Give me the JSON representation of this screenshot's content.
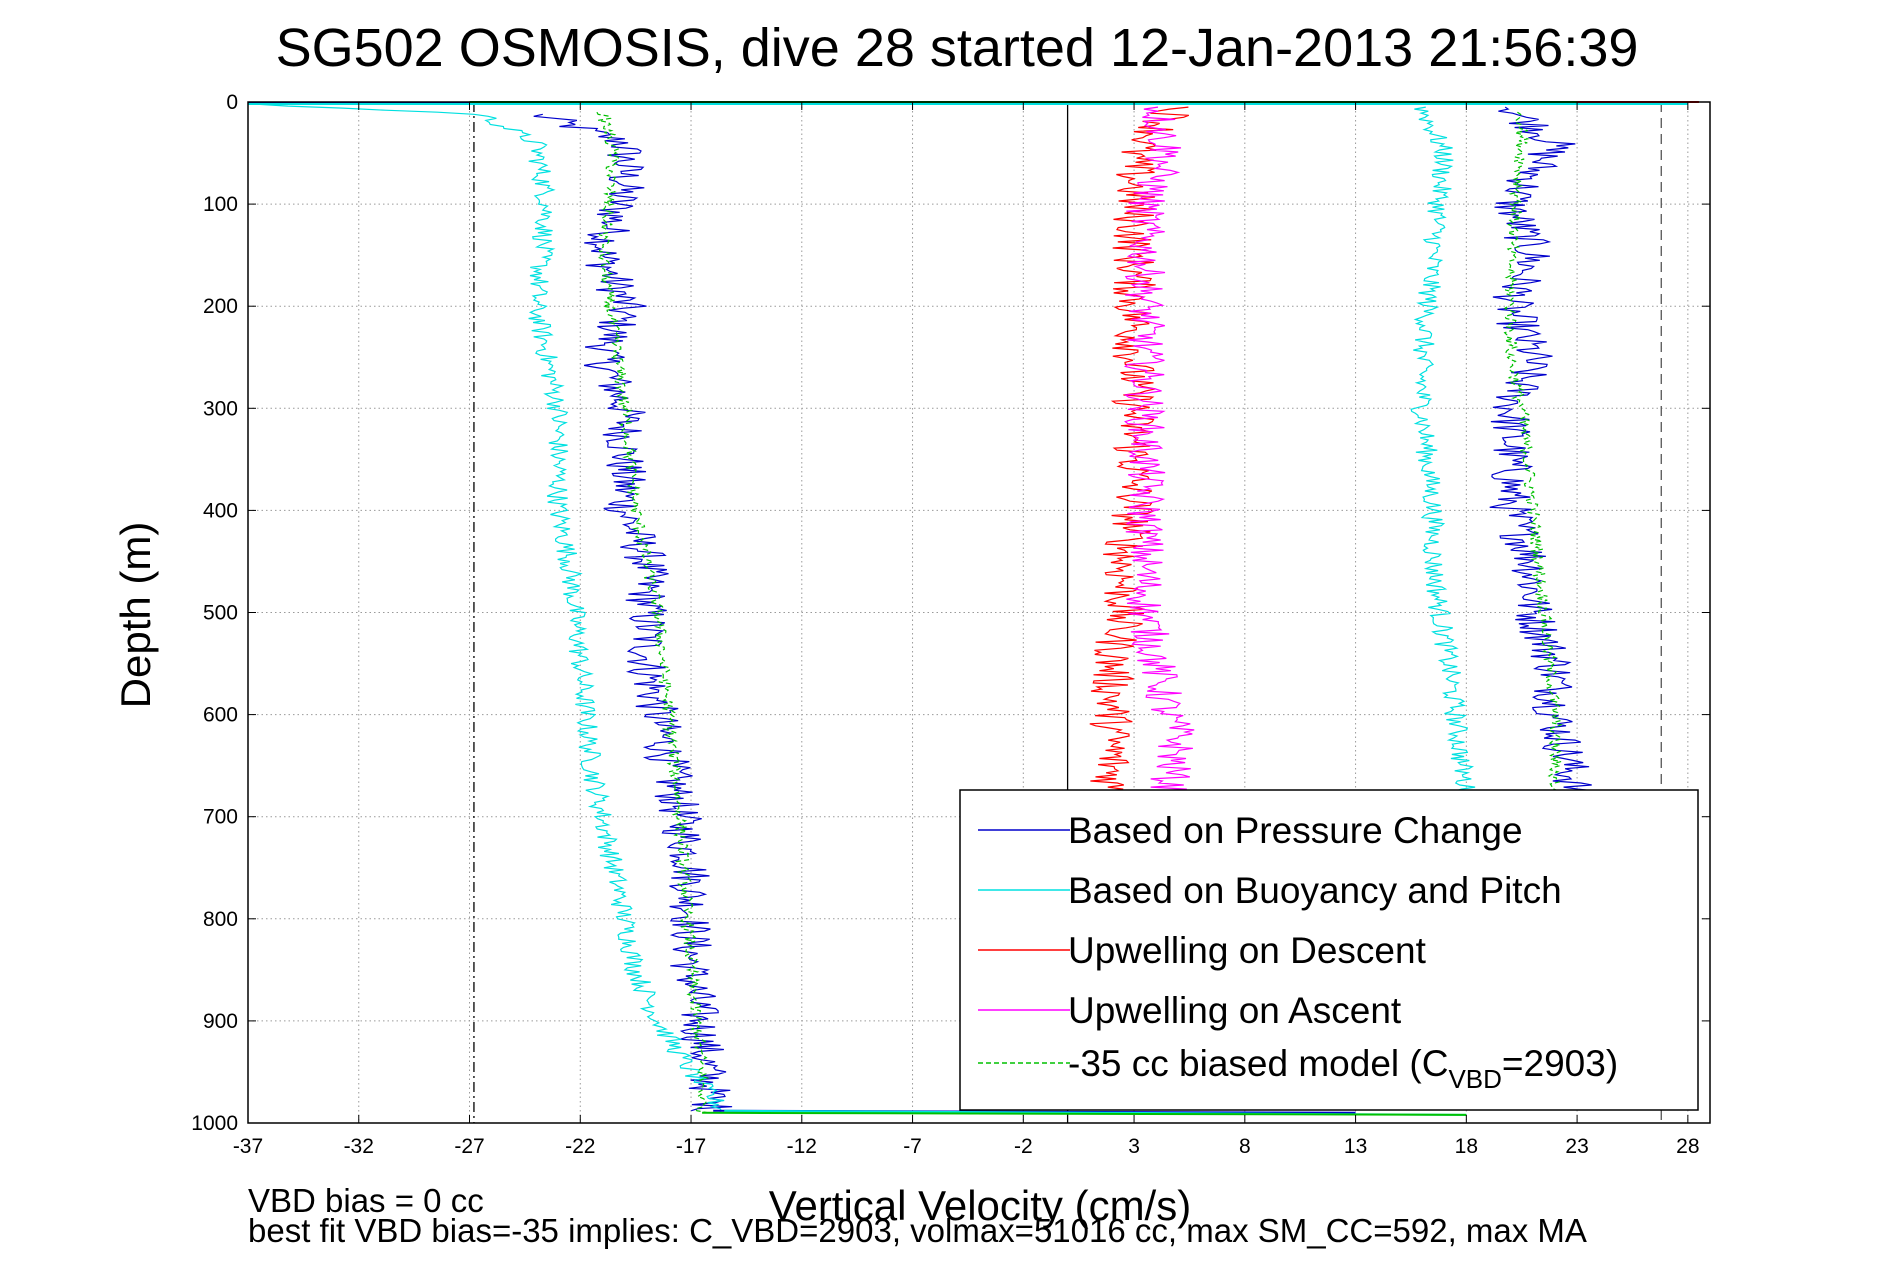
{
  "chart_data": {
    "type": "line",
    "title": "SG502 OSMOSIS, dive 28 started 12-Jan-2013 21:56:39",
    "xlabel": "Vertical Velocity (cm/s)",
    "ylabel": "Depth (m)",
    "xlim": [
      -37,
      29
    ],
    "ylim": [
      1000,
      0
    ],
    "y_reversed": true,
    "x_ticks": [
      -37,
      -32,
      -27,
      -22,
      -17,
      -12,
      -7,
      -2,
      3,
      8,
      13,
      18,
      23,
      28
    ],
    "y_ticks": [
      0,
      100,
      200,
      300,
      400,
      500,
      600,
      700,
      800,
      900,
      1000
    ],
    "grid": true,
    "legend_position": "bottom-right",
    "reference_lines": [
      {
        "x": -26.8,
        "style": "dashdot",
        "color": "#000000"
      },
      {
        "x": 0,
        "style": "solid",
        "color": "#000000"
      },
      {
        "x": 26.8,
        "style": "dashed",
        "color": "#555555"
      }
    ],
    "series": [
      {
        "name": "Based on Pressure Change",
        "color": "#0000cc",
        "style": "solid",
        "noise": 1.0,
        "segments": [
          {
            "x": [
              -24,
              -20,
              -20,
              -21,
              -20,
              -21,
              -20,
              -20,
              -20,
              -19,
              -19,
              -18,
              -17,
              -17,
              -16
            ],
            "y": [
              12,
              40,
              80,
              150,
              200,
              250,
              300,
              350,
              400,
              450,
              550,
              650,
              750,
              850,
              988
            ]
          },
          {
            "x": [
              20,
              22,
              20,
              21,
              20,
              21,
              20,
              20,
              20,
              21,
              21,
              22,
              22,
              23
            ],
            "y": [
              5,
              40,
              100,
              150,
              200,
              250,
              300,
              350,
              400,
              450,
              500,
              550,
              600,
              680
            ]
          }
        ]
      },
      {
        "name": "Based on Buoyancy and Pitch",
        "color": "#00e0e0",
        "style": "solid",
        "noise": 0.5,
        "segments": [
          {
            "x": [
              -37,
              -26.5,
              -24,
              -23.5,
              -24,
              -23,
              -23,
              -22.5,
              -22,
              -21.5,
              -20.5,
              -19.5,
              -18.5,
              -17,
              -15.5
            ],
            "y": [
              2,
              12,
              40,
              100,
              200,
              300,
              400,
              450,
              550,
              650,
              750,
              850,
              900,
              950,
              990
            ]
          },
          {
            "x": [
              16,
              17,
              16.5,
              16,
              16,
              16.5,
              16.5,
              16.8,
              17.2,
              17.5,
              17.8,
              18
            ],
            "y": [
              5,
              50,
              150,
              250,
              300,
              400,
              450,
              500,
              550,
              600,
              650,
              680
            ]
          }
        ]
      },
      {
        "name": "Upwelling on Descent",
        "color": "#ff0000",
        "style": "solid",
        "noise": 1.0,
        "segments": [
          {
            "x": [
              5,
              3,
              3,
              3,
              3,
              3,
              2.5,
              2.5,
              2,
              2,
              2,
              2
            ],
            "y": [
              5,
              50,
              100,
              200,
              300,
              400,
              450,
              500,
              550,
              600,
              650,
              680
            ]
          }
        ]
      },
      {
        "name": "Upwelling on Ascent",
        "color": "#ff00ff",
        "style": "solid",
        "noise": 0.9,
        "segments": [
          {
            "x": [
              4,
              4.5,
              3.5,
              3.5,
              3.5,
              3.5,
              3.5,
              3.5,
              4,
              4.5,
              5,
              4.5
            ],
            "y": [
              5,
              50,
              100,
              200,
              300,
              400,
              450,
              500,
              550,
              600,
              620,
              680
            ]
          }
        ]
      },
      {
        "name": "-35 cc biased model (C_VBD=2903)",
        "legend_text": "-35 cc biased model (C",
        "legend_sub": "VBD",
        "legend_suffix": "=2903)",
        "color": "#00c000",
        "style": "dashed",
        "noise": 0.3,
        "segments": [
          {
            "x": [
              -21,
              -20.5,
              -21,
              -20,
              -19.5,
              -18.5,
              -17.5,
              -17,
              -16.5,
              -16.5
            ],
            "y": [
              10,
              50,
              150,
              300,
              400,
              500,
              700,
              850,
              950,
              990
            ]
          },
          {
            "x": [
              20.5,
              20.5,
              20,
              20,
              20.5,
              21,
              21.5,
              22,
              22
            ],
            "y": [
              10,
              50,
              150,
              250,
              300,
              400,
              500,
              600,
              680
            ]
          }
        ]
      }
    ],
    "surface_lines": [
      {
        "color": "#0000cc",
        "x": [
          -37,
          28
        ],
        "y": [
          1,
          1
        ]
      },
      {
        "color": "#00e0e0",
        "x": [
          -37,
          28
        ],
        "y": [
          2,
          2
        ]
      },
      {
        "color": "#ff0000",
        "x": [
          -2,
          28.5
        ],
        "y": [
          0,
          0
        ]
      },
      {
        "color": "#00c000",
        "x": [
          -27,
          23
        ],
        "y": [
          0,
          0
        ]
      },
      {
        "color": "#0000cc",
        "x": [
          -16,
          13
        ],
        "y": [
          988,
          990
        ]
      },
      {
        "color": "#00e0e0",
        "x": [
          -15.5,
          18
        ],
        "y": [
          988,
          992
        ]
      },
      {
        "color": "#00c000",
        "x": [
          -16.5,
          18
        ],
        "y": [
          990,
          992
        ]
      }
    ]
  },
  "footer": {
    "line1": "VBD bias = 0 cc",
    "line2": "best fit VBD bias=-35 implies: C_VBD=2903, volmax=51016 cc, max SM_CC=592, max MA"
  }
}
